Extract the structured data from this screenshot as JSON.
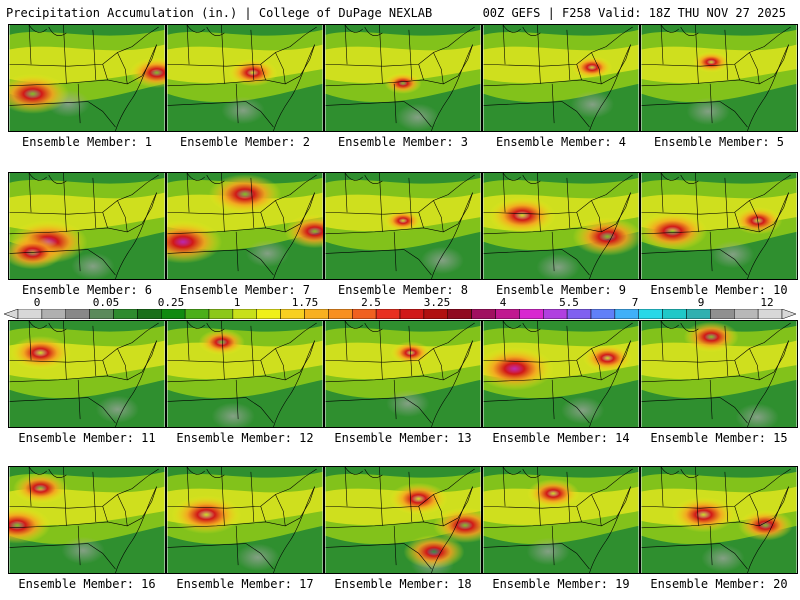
{
  "header": {
    "title_left": "Precipitation Accumulation (in.) | College of DuPage NEXLAB",
    "title_right": "00Z GEFS | F258 Valid: 18Z THU NOV 27 2025"
  },
  "panels": [
    {
      "label": "Ensemble Member: 1",
      "hot": [
        [
          0.15,
          0.65,
          0.9
        ],
        [
          0.95,
          0.45,
          0.6
        ]
      ]
    },
    {
      "label": "Ensemble Member: 2",
      "hot": [
        [
          0.55,
          0.45,
          0.5
        ]
      ]
    },
    {
      "label": "Ensemble Member: 3",
      "hot": [
        [
          0.5,
          0.55,
          0.3
        ]
      ]
    },
    {
      "label": "Ensemble Member: 4",
      "hot": [
        [
          0.7,
          0.4,
          0.35
        ]
      ]
    },
    {
      "label": "Ensemble Member: 5",
      "hot": [
        [
          0.45,
          0.35,
          0.3
        ]
      ]
    },
    {
      "label": "Ensemble Member: 6",
      "hot": [
        [
          0.25,
          0.65,
          1.0
        ],
        [
          0.15,
          0.75,
          0.7
        ]
      ]
    },
    {
      "label": "Ensemble Member: 7",
      "hot": [
        [
          0.1,
          0.65,
          1.0
        ],
        [
          0.5,
          0.2,
          0.9
        ],
        [
          0.95,
          0.55,
          0.7
        ]
      ]
    },
    {
      "label": "Ensemble Member: 8",
      "hot": [
        [
          0.5,
          0.45,
          0.3
        ]
      ]
    },
    {
      "label": "Ensemble Member: 9",
      "hot": [
        [
          0.25,
          0.4,
          0.8
        ],
        [
          0.8,
          0.6,
          0.85
        ]
      ]
    },
    {
      "label": "Ensemble Member: 10",
      "hot": [
        [
          0.2,
          0.55,
          0.85
        ],
        [
          0.75,
          0.45,
          0.5
        ]
      ]
    },
    {
      "label": "Ensemble Member: 11",
      "hot": [
        [
          0.2,
          0.3,
          0.7
        ]
      ]
    },
    {
      "label": "Ensemble Member: 12",
      "hot": [
        [
          0.35,
          0.2,
          0.45
        ]
      ]
    },
    {
      "label": "Ensemble Member: 13",
      "hot": [
        [
          0.55,
          0.3,
          0.35
        ]
      ]
    },
    {
      "label": "Ensemble Member: 14",
      "hot": [
        [
          0.2,
          0.45,
          1.0
        ],
        [
          0.8,
          0.35,
          0.5
        ]
      ]
    },
    {
      "label": "Ensemble Member: 15",
      "hot": [
        [
          0.45,
          0.15,
          0.6
        ]
      ]
    },
    {
      "label": "Ensemble Member: 16",
      "hot": [
        [
          0.05,
          0.55,
          0.8
        ],
        [
          0.2,
          0.2,
          0.6
        ]
      ]
    },
    {
      "label": "Ensemble Member: 17",
      "hot": [
        [
          0.25,
          0.45,
          0.85
        ]
      ]
    },
    {
      "label": "Ensemble Member: 18",
      "hot": [
        [
          0.6,
          0.3,
          0.65
        ],
        [
          0.9,
          0.55,
          0.75
        ],
        [
          0.7,
          0.8,
          0.7
        ]
      ]
    },
    {
      "label": "Ensemble Member: 19",
      "hot": [
        [
          0.45,
          0.25,
          0.55
        ]
      ]
    },
    {
      "label": "Ensemble Member: 20",
      "hot": [
        [
          0.4,
          0.45,
          0.75
        ],
        [
          0.8,
          0.55,
          0.6
        ]
      ]
    }
  ],
  "colorbar": {
    "ticks": [
      "0",
      "0.05",
      "0.25",
      "1",
      "1.75",
      "2.5",
      "3.25",
      "4",
      "5.5",
      "7",
      "9",
      "12"
    ],
    "colors": [
      "#d8d8d8",
      "#b0b0b0",
      "#888888",
      "#5a8a5a",
      "#2e8b2e",
      "#1a6f1a",
      "#108a10",
      "#4caf1a",
      "#8cc81a",
      "#c8e01a",
      "#f0f018",
      "#f8d020",
      "#f8b020",
      "#f89020",
      "#f06020",
      "#e83020",
      "#d01818",
      "#b01010",
      "#900a20",
      "#a01060",
      "#c01890",
      "#d828d0",
      "#b040e0",
      "#8060f0",
      "#6080f8",
      "#40b0f8",
      "#28d8e8",
      "#20c8c8",
      "#30b0b0",
      "#909090",
      "#b8b8b8",
      "#d8d8d8"
    ]
  }
}
